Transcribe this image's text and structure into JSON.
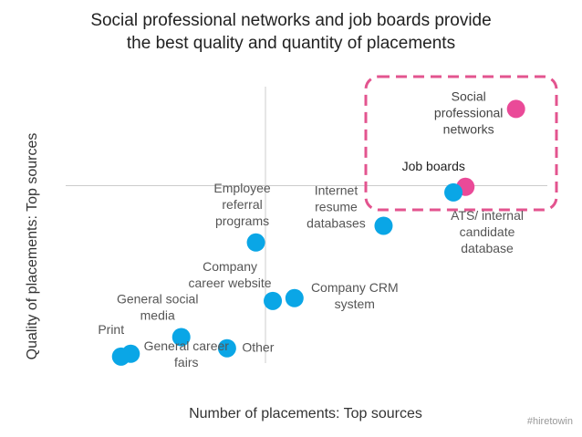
{
  "chart_data": {
    "type": "scatter",
    "title_lines": [
      "Social professional networks and job boards provide",
      "the best quality and quantity of placements"
    ],
    "xlabel": "Number of placements: Top sources",
    "ylabel": "Quality of placements: Top sources",
    "xlim": [
      0,
      10
    ],
    "ylim": [
      0,
      10
    ],
    "grid": false,
    "colors": {
      "blue": "#0aa6e6",
      "pink": "#ea4a98",
      "highlight_box": "#e3548f",
      "axis": "#cccccc",
      "label": "#555555"
    },
    "points": [
      {
        "label_lines": [
          "Social",
          "professional",
          "networks"
        ],
        "x": 9.35,
        "y": 9.2,
        "color": "pink"
      },
      {
        "label_lines": [
          "Job boards"
        ],
        "x": 8.3,
        "y": 6.4,
        "color": "pink"
      },
      {
        "label_lines": [
          "ATS/ internal",
          "candidate",
          "database"
        ],
        "x": 8.05,
        "y": 6.2,
        "color": "blue"
      },
      {
        "label_lines": [
          "Internet",
          "resume",
          "databases"
        ],
        "x": 6.6,
        "y": 5.0,
        "color": "blue"
      },
      {
        "label_lines": [
          "Employee",
          "referral",
          "programs"
        ],
        "x": 3.95,
        "y": 4.4,
        "color": "blue"
      },
      {
        "label_lines": [
          "Company CRM",
          "system"
        ],
        "x": 4.75,
        "y": 2.4,
        "color": "blue"
      },
      {
        "label_lines": [
          "Company",
          "career website"
        ],
        "x": 4.3,
        "y": 2.3,
        "color": "blue"
      },
      {
        "label_lines": [
          "General social",
          "media"
        ],
        "x": 2.4,
        "y": 1.0,
        "color": "blue"
      },
      {
        "label_lines": [
          "Other"
        ],
        "x": 3.35,
        "y": 0.6,
        "color": "blue"
      },
      {
        "label_lines": [
          "General career",
          "fairs"
        ],
        "x": 1.35,
        "y": 0.4,
        "color": "blue"
      },
      {
        "label_lines": [
          "Print"
        ],
        "x": 1.15,
        "y": 0.3,
        "color": "blue"
      }
    ]
  },
  "watermark": "#hiretowin"
}
